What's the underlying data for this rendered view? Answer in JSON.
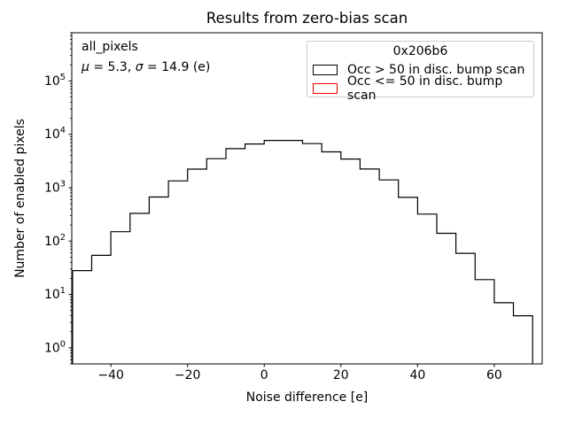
{
  "title": "Results from zero-bias scan",
  "annotation": {
    "line1": "all_pixels",
    "mu_symbol": "μ",
    "mu_rest": " = 5.3, ",
    "sigma_symbol": "σ",
    "sigma_rest": " = 14.9 (e)"
  },
  "legend": {
    "title": "0x206b6",
    "entries": [
      {
        "label": "Occ > 50 in disc. bump scan",
        "color": "#000000"
      },
      {
        "label": "Occ <= 50 in disc. bump scan",
        "color": "#ff0000"
      }
    ]
  },
  "chart_data": {
    "type": "step-histogram",
    "title": "Results from zero-bias scan",
    "xlabel": "Noise difference [e]",
    "ylabel": "Number of enabled pixels",
    "yscale": "log",
    "grid": false,
    "legend_position": "upper right",
    "xlim": [
      -50.2,
      72.5
    ],
    "ylim": [
      0.5,
      800000
    ],
    "xticks": {
      "values": [
        -40,
        -20,
        0,
        20,
        40,
        60
      ],
      "labels": [
        "−40",
        "−20",
        "0",
        "20",
        "40",
        "60"
      ]
    },
    "ytick_exponents": [
      0,
      1,
      2,
      3,
      4,
      5
    ],
    "bin_edges": [
      -50,
      -45,
      -40,
      -35,
      -30,
      -25,
      -20,
      -15,
      -10,
      -5,
      0,
      5,
      10,
      15,
      20,
      25,
      30,
      35,
      40,
      45,
      50,
      55,
      60,
      65,
      70
    ],
    "series": [
      {
        "name": "Occ > 50 in disc. bump scan",
        "color": "#000000",
        "values": [
          28,
          54,
          150,
          330,
          670,
          1340,
          2230,
          3500,
          5400,
          6600,
          7700,
          7700,
          6700,
          4700,
          3450,
          2240,
          1400,
          660,
          320,
          140,
          59,
          19,
          7,
          4
        ]
      },
      {
        "name": "Occ <= 50 in disc. bump scan",
        "color": "#ff0000",
        "values": []
      }
    ]
  }
}
